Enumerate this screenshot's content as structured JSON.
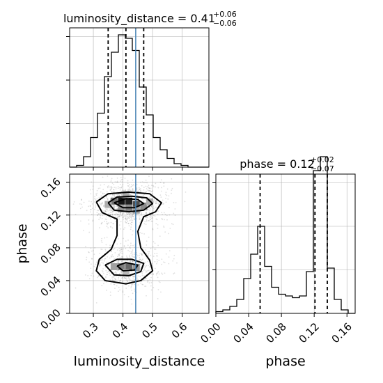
{
  "chart_data": [
    {
      "type": "histogram",
      "panel": "luminosity_distance-marginal",
      "title": {
        "main": "luminosity_distance = 0.41",
        "plus": "+0.06",
        "minus": "−0.06"
      },
      "x": {
        "label": "",
        "lim": [
          0.22,
          0.69
        ],
        "ticks": [
          0.3,
          0.4,
          0.5,
          0.6
        ]
      },
      "quantiles": [
        0.35,
        0.41,
        0.47
      ],
      "truth": 0.443,
      "y_ticks": [
        0.25,
        0.5,
        0.75
      ],
      "bins": {
        "edges": [
          0.22,
          0.2435,
          0.267,
          0.2905,
          0.314,
          0.3375,
          0.361,
          0.3845,
          0.408,
          0.4315,
          0.455,
          0.4785,
          0.502,
          0.5255,
          0.549,
          0.5725,
          0.596,
          0.6195,
          0.643,
          0.6665,
          0.69
        ],
        "values": [
          0.0,
          0.01,
          0.06,
          0.17,
          0.31,
          0.52,
          0.66,
          0.76,
          0.74,
          0.67,
          0.46,
          0.3,
          0.17,
          0.1,
          0.05,
          0.02,
          0.01,
          0.0,
          0.0,
          0.0
        ]
      }
    },
    {
      "type": "histogram",
      "panel": "phase-marginal",
      "title": {
        "main": "phase = 0.12",
        "plus": "+0.02",
        "minus": "−0.07"
      },
      "x": {
        "label": "phase",
        "lim": [
          0.0,
          0.17
        ],
        "ticks": [
          0.0,
          0.04,
          0.08,
          0.12,
          0.16
        ],
        "tick_labels": [
          "0.00",
          "0.04",
          "0.08",
          "0.12",
          "0.16"
        ]
      },
      "quantiles": [
        0.054,
        0.121,
        0.136
      ],
      "y_ticks": [
        0.25,
        0.5,
        0.75
      ],
      "bins": {
        "edges": [
          0.0,
          0.0085,
          0.017,
          0.0255,
          0.034,
          0.0425,
          0.051,
          0.0595,
          0.068,
          0.0765,
          0.085,
          0.0935,
          0.102,
          0.1105,
          0.119,
          0.1275,
          0.136,
          0.1445,
          0.153,
          0.1615,
          0.17
        ],
        "values": [
          0.01,
          0.02,
          0.04,
          0.08,
          0.2,
          0.34,
          0.5,
          0.27,
          0.15,
          0.11,
          0.1,
          0.09,
          0.1,
          0.24,
          0.82,
          0.9,
          0.26,
          0.08,
          0.02,
          0.0
        ]
      }
    },
    {
      "type": "scatter",
      "panel": "luminosity_distance-vs-phase",
      "x": {
        "label": "luminosity_distance",
        "lim": [
          0.22,
          0.69
        ],
        "ticks": [
          0.3,
          0.4,
          0.5,
          0.6
        ]
      },
      "y": {
        "label": "phase",
        "lim": [
          0.0,
          0.17
        ],
        "ticks": [
          0.0,
          0.04,
          0.08,
          0.12,
          0.16
        ],
        "tick_labels": [
          "0.00",
          "0.04",
          "0.08",
          "0.12",
          "0.16"
        ]
      },
      "truth_x": 0.443,
      "modes": [
        {
          "x": 0.42,
          "y": 0.133,
          "sx": 0.045,
          "sy": 0.009,
          "weight": 0.62
        },
        {
          "x": 0.41,
          "y": 0.057,
          "sx": 0.04,
          "sy": 0.009,
          "weight": 0.38
        }
      ],
      "contours": [
        [
          [
            0.31,
            0.136
          ],
          [
            0.35,
            0.146
          ],
          [
            0.42,
            0.148
          ],
          [
            0.49,
            0.146
          ],
          [
            0.53,
            0.135
          ],
          [
            0.51,
            0.124
          ],
          [
            0.47,
            0.118
          ],
          [
            0.45,
            0.1
          ],
          [
            0.46,
            0.08
          ],
          [
            0.49,
            0.065
          ],
          [
            0.5,
            0.052
          ],
          [
            0.46,
            0.04
          ],
          [
            0.41,
            0.036
          ],
          [
            0.34,
            0.04
          ],
          [
            0.31,
            0.052
          ],
          [
            0.32,
            0.066
          ],
          [
            0.36,
            0.078
          ],
          [
            0.38,
            0.095
          ],
          [
            0.38,
            0.115
          ],
          [
            0.33,
            0.123
          ],
          [
            0.31,
            0.136
          ]
        ],
        [
          [
            0.35,
            0.135
          ],
          [
            0.38,
            0.142
          ],
          [
            0.43,
            0.143
          ],
          [
            0.48,
            0.141
          ],
          [
            0.5,
            0.134
          ],
          [
            0.47,
            0.126
          ],
          [
            0.42,
            0.124
          ],
          [
            0.37,
            0.126
          ],
          [
            0.35,
            0.135
          ]
        ],
        [
          [
            0.37,
            0.135
          ],
          [
            0.41,
            0.14
          ],
          [
            0.45,
            0.139
          ],
          [
            0.47,
            0.134
          ],
          [
            0.44,
            0.129
          ],
          [
            0.4,
            0.129
          ],
          [
            0.37,
            0.135
          ]
        ],
        [
          [
            0.34,
            0.059
          ],
          [
            0.38,
            0.066
          ],
          [
            0.43,
            0.066
          ],
          [
            0.47,
            0.061
          ],
          [
            0.46,
            0.051
          ],
          [
            0.42,
            0.046
          ],
          [
            0.37,
            0.047
          ],
          [
            0.34,
            0.059
          ]
        ],
        [
          [
            0.38,
            0.058
          ],
          [
            0.41,
            0.062
          ],
          [
            0.45,
            0.059
          ],
          [
            0.44,
            0.053
          ],
          [
            0.4,
            0.052
          ],
          [
            0.38,
            0.058
          ]
        ]
      ],
      "density_cells": [
        {
          "x": 0.395,
          "y": 0.137,
          "w": 1.0
        },
        {
          "x": 0.42,
          "y": 0.137,
          "w": 0.95
        },
        {
          "x": 0.445,
          "y": 0.133,
          "w": 0.75
        },
        {
          "x": 0.37,
          "y": 0.137,
          "w": 0.6
        },
        {
          "x": 0.47,
          "y": 0.131,
          "w": 0.5
        },
        {
          "x": 0.395,
          "y": 0.128,
          "w": 0.45
        },
        {
          "x": 0.42,
          "y": 0.128,
          "w": 0.55
        },
        {
          "x": 0.445,
          "y": 0.126,
          "w": 0.4
        },
        {
          "x": 0.35,
          "y": 0.133,
          "w": 0.35
        },
        {
          "x": 0.49,
          "y": 0.136,
          "w": 0.35
        },
        {
          "x": 0.41,
          "y": 0.145,
          "w": 0.35
        },
        {
          "x": 0.395,
          "y": 0.057,
          "w": 0.55
        },
        {
          "x": 0.42,
          "y": 0.057,
          "w": 0.65
        },
        {
          "x": 0.37,
          "y": 0.057,
          "w": 0.4
        },
        {
          "x": 0.445,
          "y": 0.056,
          "w": 0.45
        },
        {
          "x": 0.41,
          "y": 0.05,
          "w": 0.3
        }
      ]
    }
  ]
}
